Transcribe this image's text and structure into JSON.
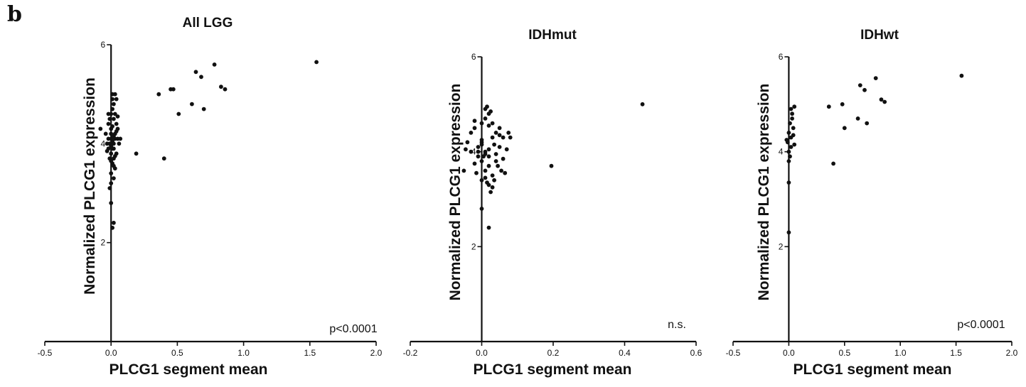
{
  "figure": {
    "panel_letter": "b"
  },
  "chart_data": [
    {
      "type": "scatter",
      "title": "All LGG",
      "xlabel": "PLCG1 segment mean",
      "ylabel": "Normalized PLCG1 expression",
      "xlim": [
        -0.5,
        2.0
      ],
      "ylim": [
        0,
        6
      ],
      "xticks": [
        -0.5,
        0.0,
        0.5,
        1.0,
        1.5,
        2.0
      ],
      "xtick_labels": [
        "-0.5",
        "0.0",
        "0.5",
        "1.0",
        "1.5",
        "2.0"
      ],
      "yticks": [
        2,
        4,
        6
      ],
      "ytick_labels": [
        "2",
        "4",
        "6"
      ],
      "annotation": "p<0.0001",
      "points": [
        [
          0.0,
          4.3
        ],
        [
          0.01,
          4.0
        ],
        [
          0.02,
          3.9
        ],
        [
          -0.02,
          4.1
        ],
        [
          0.03,
          4.2
        ],
        [
          0.0,
          3.8
        ],
        [
          0.04,
          4.4
        ],
        [
          0.01,
          3.6
        ],
        [
          -0.01,
          4.5
        ],
        [
          0.02,
          3.7
        ],
        [
          0.05,
          4.1
        ],
        [
          -0.03,
          4.0
        ],
        [
          0.0,
          4.6
        ],
        [
          0.03,
          3.5
        ],
        [
          0.02,
          4.8
        ],
        [
          0.01,
          4.7
        ],
        [
          -0.02,
          3.9
        ],
        [
          0.04,
          3.8
        ],
        [
          0.0,
          4.2
        ],
        [
          0.01,
          4.9
        ],
        [
          0.03,
          4.6
        ],
        [
          -0.01,
          3.7
        ],
        [
          0.02,
          4.0
        ],
        [
          0.05,
          4.3
        ],
        [
          0.0,
          3.4
        ],
        [
          0.02,
          3.3
        ],
        [
          0.01,
          5.0
        ],
        [
          0.03,
          5.0
        ],
        [
          0.04,
          4.9
        ],
        [
          -0.02,
          4.4
        ],
        [
          0.0,
          4.1
        ],
        [
          0.01,
          3.9
        ],
        [
          -0.04,
          4.2
        ],
        [
          0.06,
          4.0
        ],
        [
          0.02,
          4.5
        ],
        [
          0.03,
          4.1
        ],
        [
          -0.01,
          4.0
        ],
        [
          0.0,
          3.95
        ],
        [
          0.02,
          4.15
        ],
        [
          0.01,
          4.35
        ],
        [
          -0.03,
          3.85
        ],
        [
          0.04,
          4.25
        ],
        [
          0.0,
          3.65
        ],
        [
          0.02,
          3.55
        ],
        [
          0.01,
          4.05
        ],
        [
          -0.02,
          4.6
        ],
        [
          0.03,
          3.75
        ],
        [
          0.05,
          4.55
        ],
        [
          -0.08,
          4.3
        ],
        [
          0.07,
          4.1
        ],
        [
          0.0,
          2.8
        ],
        [
          0.02,
          2.4
        ],
        [
          0.01,
          2.3
        ],
        [
          -0.01,
          3.1
        ],
        [
          0.0,
          3.2
        ],
        [
          0.19,
          3.8
        ],
        [
          0.4,
          3.7
        ],
        [
          0.36,
          5.0
        ],
        [
          0.45,
          5.1
        ],
        [
          0.47,
          5.1
        ],
        [
          0.51,
          4.6
        ],
        [
          0.61,
          4.8
        ],
        [
          0.64,
          5.45
        ],
        [
          0.68,
          5.35
        ],
        [
          0.7,
          4.7
        ],
        [
          0.78,
          5.6
        ],
        [
          0.83,
          5.15
        ],
        [
          0.86,
          5.1
        ],
        [
          1.55,
          5.65
        ]
      ]
    },
    {
      "type": "scatter",
      "title": "IDHmut",
      "xlabel": "PLCG1 segment mean",
      "ylabel": "Normalized PLCG1 expression",
      "xlim": [
        -0.2,
        0.6
      ],
      "ylim": [
        0,
        6
      ],
      "xticks": [
        -0.2,
        0.0,
        0.2,
        0.4,
        0.6
      ],
      "xtick_labels": [
        "-0.2",
        "0.0",
        "0.2",
        "0.4",
        "0.6"
      ],
      "yticks": [
        2,
        4,
        6
      ],
      "ytick_labels": [
        "2",
        "4",
        "6"
      ],
      "annotation": "n.s.",
      "points": [
        [
          0.0,
          4.2
        ],
        [
          0.01,
          4.0
        ],
        [
          0.02,
          3.9
        ],
        [
          -0.01,
          4.1
        ],
        [
          0.03,
          4.3
        ],
        [
          0.0,
          3.8
        ],
        [
          0.04,
          4.4
        ],
        [
          0.01,
          3.6
        ],
        [
          -0.02,
          4.5
        ],
        [
          0.02,
          3.7
        ],
        [
          0.05,
          4.1
        ],
        [
          -0.03,
          4.0
        ],
        [
          0.0,
          4.6
        ],
        [
          0.03,
          3.5
        ],
        [
          0.02,
          4.8
        ],
        [
          0.01,
          4.7
        ],
        [
          -0.01,
          3.9
        ],
        [
          0.04,
          3.8
        ],
        [
          0.0,
          4.25
        ],
        [
          0.01,
          4.9
        ],
        [
          0.03,
          4.6
        ],
        [
          -0.02,
          3.75
        ],
        [
          0.02,
          4.05
        ],
        [
          0.05,
          4.35
        ],
        [
          0.0,
          3.4
        ],
        [
          0.02,
          3.3
        ],
        [
          0.015,
          4.95
        ],
        [
          0.025,
          4.85
        ],
        [
          0.06,
          4.3
        ],
        [
          -0.03,
          4.4
        ],
        [
          0.0,
          4.15
        ],
        [
          0.01,
          3.95
        ],
        [
          -0.04,
          4.2
        ],
        [
          0.07,
          4.05
        ],
        [
          0.02,
          4.55
        ],
        [
          0.035,
          4.15
        ],
        [
          -0.01,
          4.0
        ],
        [
          0.005,
          3.9
        ],
        [
          0.045,
          3.7
        ],
        [
          0.055,
          3.6
        ],
        [
          -0.05,
          3.6
        ],
        [
          0.065,
          3.55
        ],
        [
          0.03,
          3.25
        ],
        [
          0.01,
          3.45
        ],
        [
          0.025,
          3.15
        ],
        [
          -0.02,
          4.65
        ],
        [
          0.04,
          3.95
        ],
        [
          0.05,
          4.5
        ],
        [
          0.075,
          4.4
        ],
        [
          0.08,
          4.3
        ],
        [
          -0.045,
          4.05
        ],
        [
          0.06,
          3.85
        ],
        [
          0.015,
          3.35
        ],
        [
          0.035,
          3.4
        ],
        [
          -0.015,
          3.55
        ],
        [
          0.0,
          2.8
        ],
        [
          0.02,
          2.4
        ],
        [
          0.195,
          3.7
        ],
        [
          0.45,
          5.0
        ]
      ]
    },
    {
      "type": "scatter",
      "title": "IDHwt",
      "xlabel": "PLCG1 segment mean",
      "ylabel": "Normalized PLCG1 expression",
      "xlim": [
        -0.5,
        2.0
      ],
      "ylim": [
        0,
        6
      ],
      "xticks": [
        -0.5,
        0.0,
        0.5,
        1.0,
        1.5,
        2.0
      ],
      "xtick_labels": [
        "-0.5",
        "0.0",
        "0.5",
        "1.0",
        "1.5",
        "2.0"
      ],
      "yticks": [
        2,
        4,
        6
      ],
      "ytick_labels": [
        "2",
        "4",
        "6"
      ],
      "annotation": "p<0.0001",
      "points": [
        [
          0.0,
          4.4
        ],
        [
          0.02,
          4.3
        ],
        [
          0.01,
          4.6
        ],
        [
          0.03,
          4.7
        ],
        [
          -0.01,
          4.2
        ],
        [
          0.04,
          4.35
        ],
        [
          0.0,
          4.0
        ],
        [
          0.02,
          4.1
        ],
        [
          0.05,
          4.15
        ],
        [
          0.01,
          3.9
        ],
        [
          0.03,
          4.8
        ],
        [
          0.02,
          4.9
        ],
        [
          0.0,
          3.8
        ],
        [
          0.04,
          4.5
        ],
        [
          -0.02,
          4.25
        ],
        [
          0.05,
          4.95
        ],
        [
          0.0,
          3.35
        ],
        [
          0.0,
          2.3
        ],
        [
          0.36,
          4.95
        ],
        [
          0.4,
          3.75
        ],
        [
          0.48,
          5.0
        ],
        [
          0.5,
          4.5
        ],
        [
          0.62,
          4.7
        ],
        [
          0.64,
          5.4
        ],
        [
          0.68,
          5.3
        ],
        [
          0.7,
          4.6
        ],
        [
          0.78,
          5.55
        ],
        [
          0.83,
          5.1
        ],
        [
          0.86,
          5.05
        ],
        [
          1.55,
          5.6
        ]
      ]
    }
  ]
}
